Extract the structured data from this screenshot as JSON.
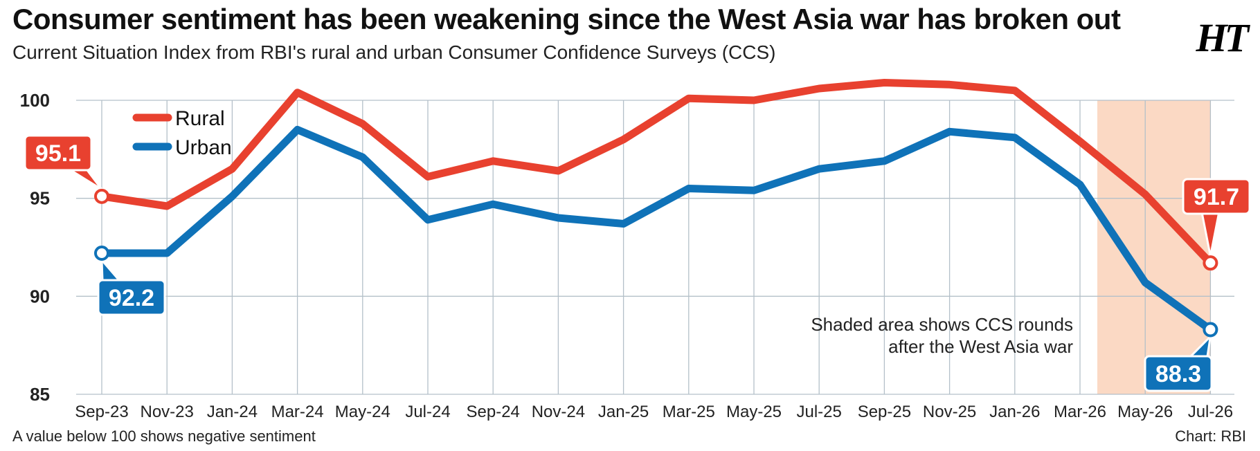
{
  "header": {
    "title": "Consumer sentiment has been weakening since the West Asia war has broken out",
    "subtitle": "Current Situation Index from RBI's rural and urban Consumer Confidence Surveys (CCS)",
    "logo": "HT"
  },
  "footer": {
    "note": "A value below 100 shows negative sentiment",
    "source": "Chart: RBI"
  },
  "colors": {
    "rural": "#e8412f",
    "urban": "#0f72b8",
    "shade": "#fbd9c4",
    "grid": "#b4c0c9"
  },
  "chart_data": {
    "type": "line",
    "title": "Consumer sentiment has been weakening since the West Asia war has broken out",
    "subtitle": "Current Situation Index from RBI's rural and urban Consumer Confidence Surveys (CCS)",
    "categories": [
      "Sep-23",
      "Nov-23",
      "Jan-24",
      "Mar-24",
      "May-24",
      "Jul-24",
      "Sep-24",
      "Nov-24",
      "Jan-25",
      "Mar-25",
      "May-25",
      "Jul-25",
      "Sep-25",
      "Nov-25",
      "Jan-26",
      "Mar-26",
      "May-26",
      "Jul-26"
    ],
    "series": [
      {
        "name": "Rural",
        "values": [
          95.1,
          94.6,
          96.5,
          100.4,
          98.8,
          96.1,
          96.9,
          96.4,
          98.0,
          100.1,
          100.0,
          100.6,
          100.9,
          100.8,
          100.5,
          97.9,
          95.2,
          91.7
        ]
      },
      {
        "name": "Urban",
        "values": [
          92.2,
          92.2,
          95.1,
          98.5,
          97.1,
          93.9,
          94.7,
          94.0,
          93.7,
          95.5,
          95.4,
          96.5,
          96.9,
          98.4,
          98.1,
          95.7,
          90.7,
          88.3
        ]
      }
    ],
    "yticks": [
      85,
      90,
      95,
      100
    ],
    "ylim": [
      85,
      100
    ],
    "grid": true,
    "legend_position": "top-left",
    "shaded_region": {
      "from": "Mar-26",
      "to": "Jul-26",
      "label_lines": [
        "Shaded area shows CCS rounds",
        "after the West Asia war"
      ]
    },
    "callouts": [
      {
        "series": "Rural",
        "category": "Sep-23",
        "text": "95.1"
      },
      {
        "series": "Urban",
        "category": "Sep-23",
        "text": "92.2"
      },
      {
        "series": "Rural",
        "category": "Jul-26",
        "text": "91.7"
      },
      {
        "series": "Urban",
        "category": "Jul-26",
        "text": "88.3"
      }
    ]
  }
}
